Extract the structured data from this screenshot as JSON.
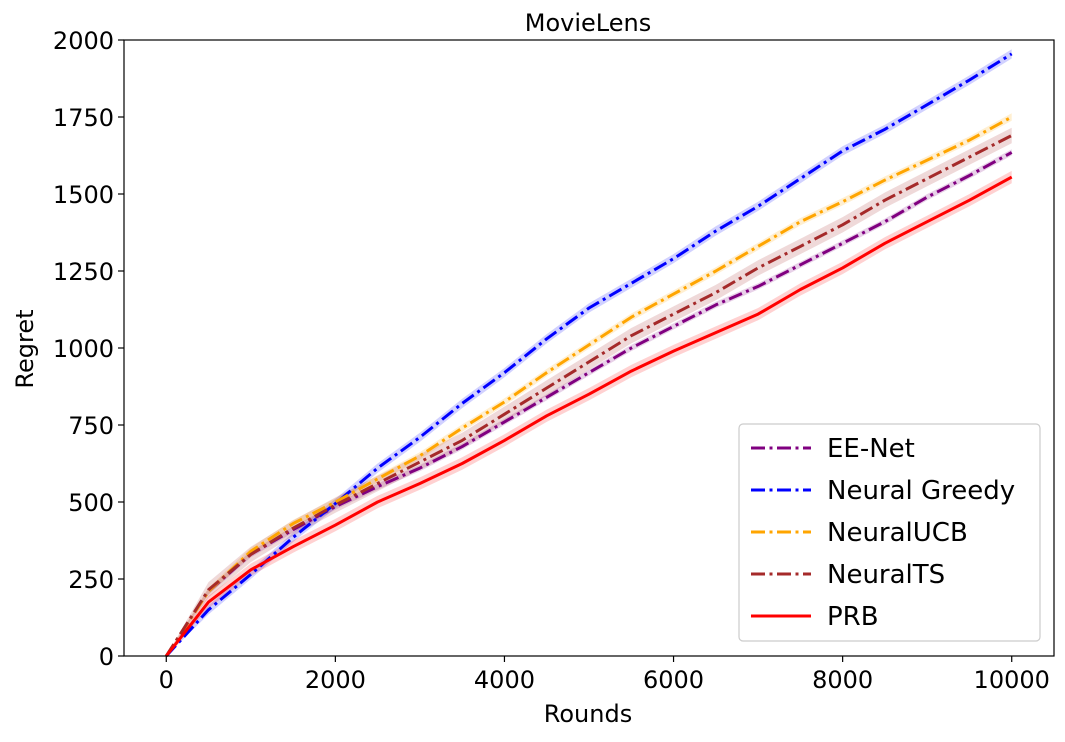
{
  "chart_data": {
    "type": "line",
    "title": "MovieLens",
    "xlabel": "Rounds",
    "ylabel": "Regret",
    "xlim": [
      -500,
      10500
    ],
    "ylim": [
      0,
      2000
    ],
    "xticks": [
      0,
      2000,
      4000,
      6000,
      8000,
      10000
    ],
    "xtick_labels": [
      "0",
      "2000",
      "4000",
      "6000",
      "8000",
      "10000"
    ],
    "yticks": [
      0,
      250,
      500,
      750,
      1000,
      1250,
      1500,
      1750,
      2000
    ],
    "ytick_labels": [
      "0",
      "250",
      "500",
      "750",
      "1000",
      "1250",
      "1500",
      "1750",
      "2000"
    ],
    "grid": false,
    "legend_position": "lower-right",
    "x": [
      0,
      500,
      1000,
      1500,
      2000,
      2500,
      3000,
      3500,
      4000,
      4500,
      5000,
      5500,
      6000,
      6500,
      7000,
      7500,
      8000,
      8500,
      9000,
      9500,
      10000
    ],
    "series": [
      {
        "name": "EE-Net",
        "color": "#800080",
        "linestyle": "dashdot",
        "values": [
          0,
          210,
          330,
          410,
          485,
          550,
          610,
          680,
          760,
          840,
          920,
          1000,
          1070,
          1140,
          1200,
          1270,
          1340,
          1410,
          1490,
          1560,
          1635
        ],
        "band": 10
      },
      {
        "name": "Neural Greedy",
        "color": "#0000ff",
        "linestyle": "dashdot",
        "values": [
          0,
          150,
          265,
          385,
          495,
          610,
          710,
          820,
          920,
          1030,
          1130,
          1210,
          1290,
          1380,
          1460,
          1550,
          1640,
          1710,
          1790,
          1870,
          1955
        ],
        "band": 15
      },
      {
        "name": "NeuralUCB",
        "color": "#ffa500",
        "linestyle": "dashdot",
        "values": [
          0,
          210,
          340,
          430,
          500,
          575,
          650,
          740,
          825,
          920,
          1010,
          1100,
          1175,
          1250,
          1330,
          1410,
          1475,
          1545,
          1610,
          1675,
          1750
        ],
        "band": 12
      },
      {
        "name": "NeuralTS",
        "color": "#a52a2a",
        "linestyle": "dashdot",
        "values": [
          0,
          215,
          330,
          415,
          490,
          560,
          630,
          700,
          785,
          870,
          955,
          1040,
          1110,
          1180,
          1260,
          1330,
          1400,
          1480,
          1550,
          1620,
          1690
        ],
        "band": 25
      },
      {
        "name": "PRB",
        "color": "#ff0000",
        "linestyle": "solid",
        "values": [
          0,
          175,
          280,
          355,
          425,
          500,
          560,
          625,
          700,
          780,
          850,
          925,
          990,
          1050,
          1110,
          1190,
          1260,
          1340,
          1410,
          1480,
          1555
        ],
        "band": 20
      }
    ]
  }
}
